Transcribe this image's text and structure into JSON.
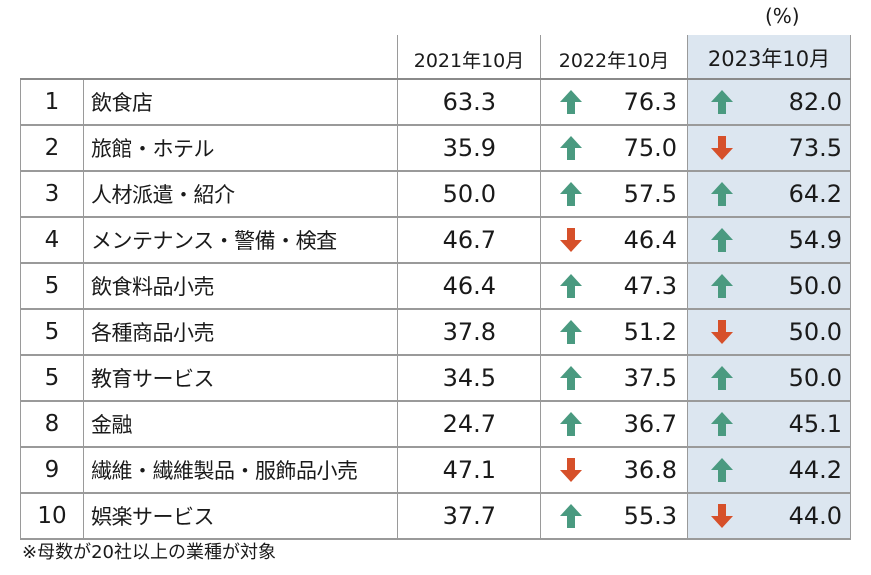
{
  "unit": "(%)",
  "note": "※母数が20社以上の業種が対象",
  "colors": {
    "up": "#4a9a80",
    "down": "#d6502a",
    "highlight": "#dce6f0"
  },
  "chart_data": {
    "type": "table",
    "columns": [
      "2021年10月",
      "2022年10月",
      "2023年10月"
    ],
    "rows": [
      {
        "rank": "1",
        "industry": "飲食店",
        "y2021": "63.3",
        "y2022": "76.3",
        "d2022": "up",
        "y2023": "82.0",
        "d2023": "up"
      },
      {
        "rank": "2",
        "industry": "旅館・ホテル",
        "y2021": "35.9",
        "y2022": "75.0",
        "d2022": "up",
        "y2023": "73.5",
        "d2023": "down"
      },
      {
        "rank": "3",
        "industry": "人材派遣・紹介",
        "y2021": "50.0",
        "y2022": "57.5",
        "d2022": "up",
        "y2023": "64.2",
        "d2023": "up"
      },
      {
        "rank": "4",
        "industry": "メンテナンス・警備・検査",
        "y2021": "46.7",
        "y2022": "46.4",
        "d2022": "down",
        "y2023": "54.9",
        "d2023": "up"
      },
      {
        "rank": "5",
        "industry": "飲食料品小売",
        "y2021": "46.4",
        "y2022": "47.3",
        "d2022": "up",
        "y2023": "50.0",
        "d2023": "up"
      },
      {
        "rank": "5",
        "industry": "各種商品小売",
        "y2021": "37.8",
        "y2022": "51.2",
        "d2022": "up",
        "y2023": "50.0",
        "d2023": "down"
      },
      {
        "rank": "5",
        "industry": "教育サービス",
        "y2021": "34.5",
        "y2022": "37.5",
        "d2022": "up",
        "y2023": "50.0",
        "d2023": "up"
      },
      {
        "rank": "8",
        "industry": "金融",
        "y2021": "24.7",
        "y2022": "36.7",
        "d2022": "up",
        "y2023": "45.1",
        "d2023": "up"
      },
      {
        "rank": "9",
        "industry": "繊維・繊維製品・服飾品小売",
        "y2021": "47.1",
        "y2022": "36.8",
        "d2022": "down",
        "y2023": "44.2",
        "d2023": "up"
      },
      {
        "rank": "10",
        "industry": "娯楽サービス",
        "y2021": "37.7",
        "y2022": "55.3",
        "d2022": "up",
        "y2023": "44.0",
        "d2023": "down"
      }
    ]
  }
}
